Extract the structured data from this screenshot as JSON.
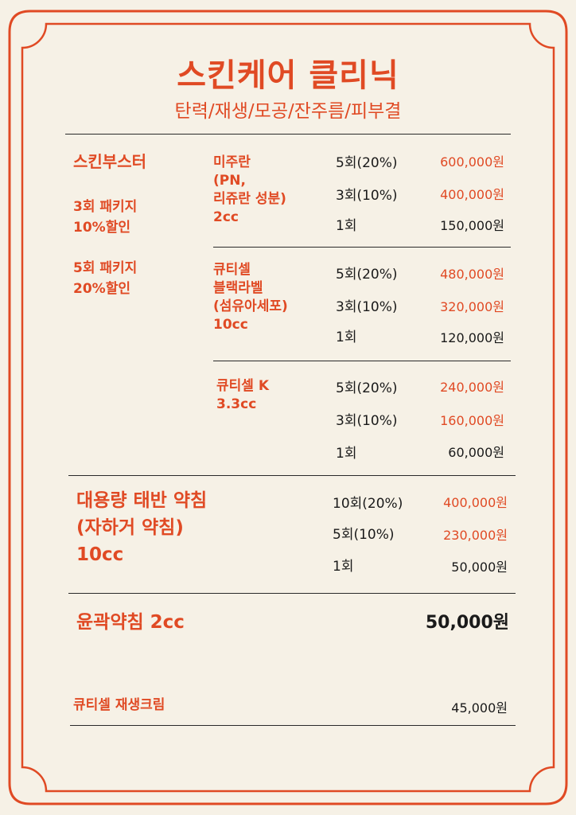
{
  "title": "스킨케어 클리닉",
  "subtitle": "탄력/재생/모공/잔주름/피부결",
  "booster": {
    "name": "스킨부스터",
    "pkg3": [
      "3회 패키지",
      "10%할인"
    ],
    "pkg5": [
      "5회 패키지",
      "20%할인"
    ],
    "products": [
      {
        "name_lines": [
          "미주란",
          "(PN,",
          "리쥬란 성분)",
          "2cc"
        ],
        "rows": [
          {
            "count": "5회(20%)",
            "price": "600,000원"
          },
          {
            "count": "3회(10%)",
            "price": "400,000원"
          },
          {
            "count": "1회",
            "price": "150,000원"
          }
        ]
      },
      {
        "name_lines": [
          "큐티셀",
          "블랙라벨",
          "(섬유아세포)",
          "10cc"
        ],
        "rows": [
          {
            "count": "5회(20%)",
            "price": "480,000원"
          },
          {
            "count": "3회(10%)",
            "price": "320,000원"
          },
          {
            "count": "1회",
            "price": "120,000원"
          }
        ]
      },
      {
        "name_lines": [
          "큐티셀 K",
          "3.3cc"
        ],
        "rows": [
          {
            "count": "5회(20%)",
            "price": "240,000원"
          },
          {
            "count": "3회(10%)",
            "price": "160,000원"
          },
          {
            "count": "1회",
            "price": "60,000원"
          }
        ]
      }
    ]
  },
  "placenta": {
    "name_lines": [
      "대용량 태반 약침",
      "(자하거 약침)",
      "10cc"
    ],
    "rows": [
      {
        "count": "10회(20%)",
        "price": "400,000원"
      },
      {
        "count": "5회(10%)",
        "price": "230,000원"
      },
      {
        "count": "1회",
        "price": "50,000원"
      }
    ]
  },
  "contour": {
    "name": "윤곽약침 2cc",
    "price": "50,000원"
  },
  "cream": {
    "name": "큐티셀 재생크림",
    "price": "45,000원"
  },
  "colors": {
    "accent": "#e04a24",
    "background": "#f6f1e6",
    "text": "#1a1a1a"
  }
}
